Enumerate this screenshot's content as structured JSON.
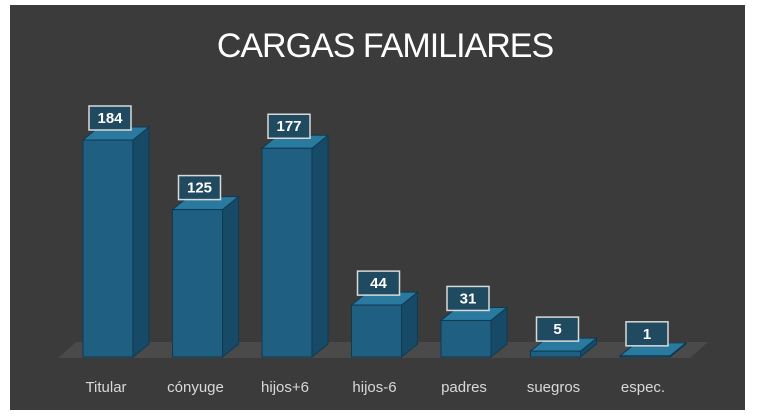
{
  "chart_data": {
    "type": "bar3d",
    "title": "CARGAS FAMILIARES",
    "categories": [
      "Titular",
      "cónyuge",
      "hijos+6",
      "hijos-6",
      "padres",
      "suegros",
      "espec."
    ],
    "values": [
      184,
      125,
      177,
      44,
      31,
      5,
      1
    ],
    "color": "#1f5f82"
  }
}
